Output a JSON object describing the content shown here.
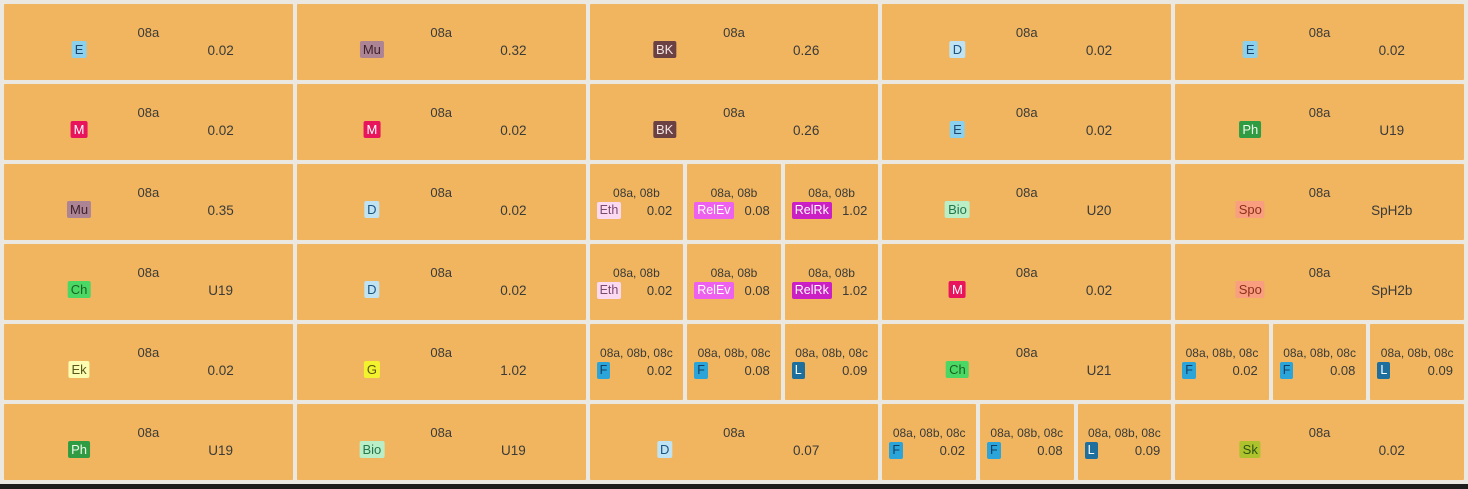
{
  "app": {
    "title": "timetable-week-grid"
  },
  "colors": {
    "tile_bg": "#f0b55e",
    "tile_text": "#3a3a3a",
    "gap": "#ebe7e1",
    "bottom_bar": "#1d1d1d"
  },
  "badge_styles": {
    "E": {
      "bg": "#8bd0ec",
      "fg": "#1c4670"
    },
    "M": {
      "bg": "#e8155c",
      "fg": "#ffffff"
    },
    "Mu": {
      "bg": "#ad8494",
      "fg": "#3c222d"
    },
    "BK": {
      "bg": "#6b4144",
      "fg": "#f2e4e4"
    },
    "D": {
      "bg": "#bfe3f2",
      "fg": "#1d5380"
    },
    "Ph": {
      "bg": "#2f9c44",
      "fg": "#eef8e9"
    },
    "Ch": {
      "bg": "#4bd763",
      "fg": "#1a6326"
    },
    "Bio": {
      "bg": "#b9eec7",
      "fg": "#24764e"
    },
    "Spo": {
      "bg": "#f99f80",
      "fg": "#8e2e1d"
    },
    "Ek": {
      "bg": "#fbfbb2",
      "fg": "#56561d"
    },
    "G": {
      "bg": "#f2f22e",
      "fg": "#565610"
    },
    "Eth": {
      "bg": "#fbd9f1",
      "fg": "#7c4a71"
    },
    "RelEv": {
      "bg": "#ee60ee",
      "fg": "#ffffff"
    },
    "RelRk": {
      "bg": "#ca20c4",
      "fg": "#ffffff"
    },
    "F": {
      "bg": "#2aa4d9",
      "fg": "#123f63"
    },
    "L": {
      "bg": "#1e6f9d",
      "fg": "#ffffff"
    },
    "Sk": {
      "bg": "#adc22c",
      "fg": "#2a5413"
    }
  },
  "grid": {
    "rows": [
      {
        "cells": [
          {
            "type": "single",
            "subject": "E",
            "group": "08a",
            "room": "0.02"
          },
          {
            "type": "single",
            "subject": "Mu",
            "group": "08a",
            "room": "0.32"
          },
          {
            "type": "single",
            "subject": "BK",
            "group": "08a",
            "room": "0.26"
          },
          {
            "type": "single",
            "subject": "D",
            "group": "08a",
            "room": "0.02"
          },
          {
            "type": "single",
            "subject": "E",
            "group": "08a",
            "room": "0.02"
          }
        ]
      },
      {
        "cells": [
          {
            "type": "single",
            "subject": "M",
            "group": "08a",
            "room": "0.02"
          },
          {
            "type": "single",
            "subject": "M",
            "group": "08a",
            "room": "0.02"
          },
          {
            "type": "single",
            "subject": "BK",
            "group": "08a",
            "room": "0.26"
          },
          {
            "type": "single",
            "subject": "E",
            "group": "08a",
            "room": "0.02"
          },
          {
            "type": "single",
            "subject": "Ph",
            "group": "08a",
            "room": "U19"
          }
        ]
      },
      {
        "cells": [
          {
            "type": "single",
            "subject": "Mu",
            "group": "08a",
            "room": "0.35"
          },
          {
            "type": "single",
            "subject": "D",
            "group": "08a",
            "room": "0.02"
          },
          {
            "type": "split",
            "parts": [
              {
                "subject": "Eth",
                "group": "08a, 08b",
                "room": "0.02"
              },
              {
                "subject": "RelEv",
                "group": "08a, 08b",
                "room": "0.08"
              },
              {
                "subject": "RelRk",
                "group": "08a, 08b",
                "room": "1.02"
              }
            ]
          },
          {
            "type": "single",
            "subject": "Bio",
            "group": "08a",
            "room": "U20"
          },
          {
            "type": "single",
            "subject": "Spo",
            "group": "08a",
            "room": "SpH2b"
          }
        ]
      },
      {
        "cells": [
          {
            "type": "single",
            "subject": "Ch",
            "group": "08a",
            "room": "U19"
          },
          {
            "type": "single",
            "subject": "D",
            "group": "08a",
            "room": "0.02"
          },
          {
            "type": "split",
            "parts": [
              {
                "subject": "Eth",
                "group": "08a, 08b",
                "room": "0.02"
              },
              {
                "subject": "RelEv",
                "group": "08a, 08b",
                "room": "0.08"
              },
              {
                "subject": "RelRk",
                "group": "08a, 08b",
                "room": "1.02"
              }
            ]
          },
          {
            "type": "single",
            "subject": "M",
            "group": "08a",
            "room": "0.02"
          },
          {
            "type": "single",
            "subject": "Spo",
            "group": "08a",
            "room": "SpH2b"
          }
        ]
      },
      {
        "cells": [
          {
            "type": "single",
            "subject": "Ek",
            "group": "08a",
            "room": "0.02"
          },
          {
            "type": "single",
            "subject": "G",
            "group": "08a",
            "room": "1.02"
          },
          {
            "type": "split",
            "parts": [
              {
                "subject": "F",
                "group": "08a, 08b, 08c",
                "room": "0.02"
              },
              {
                "subject": "F",
                "group": "08a, 08b, 08c",
                "room": "0.08"
              },
              {
                "subject": "L",
                "group": "08a, 08b, 08c",
                "room": "0.09"
              }
            ]
          },
          {
            "type": "single",
            "subject": "Ch",
            "group": "08a",
            "room": "U21"
          },
          {
            "type": "split",
            "parts": [
              {
                "subject": "F",
                "group": "08a, 08b, 08c",
                "room": "0.02"
              },
              {
                "subject": "F",
                "group": "08a, 08b, 08c",
                "room": "0.08"
              },
              {
                "subject": "L",
                "group": "08a, 08b, 08c",
                "room": "0.09"
              }
            ]
          }
        ]
      },
      {
        "cells": [
          {
            "type": "single",
            "subject": "Ph",
            "group": "08a",
            "room": "U19"
          },
          {
            "type": "single",
            "subject": "Bio",
            "group": "08a",
            "room": "U19"
          },
          {
            "type": "single",
            "subject": "D",
            "group": "08a",
            "room": "0.07"
          },
          {
            "type": "split",
            "parts": [
              {
                "subject": "F",
                "group": "08a, 08b, 08c",
                "room": "0.02"
              },
              {
                "subject": "F",
                "group": "08a, 08b, 08c",
                "room": "0.08"
              },
              {
                "subject": "L",
                "group": "08a, 08b, 08c",
                "room": "0.09"
              }
            ]
          },
          {
            "type": "single",
            "subject": "Sk",
            "group": "08a",
            "room": "0.02"
          }
        ]
      }
    ]
  }
}
